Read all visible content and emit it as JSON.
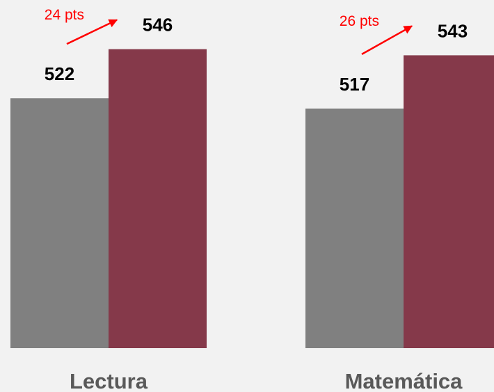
{
  "chart_data": {
    "type": "bar",
    "categories": [
      "Lectura",
      "Matemática"
    ],
    "series": [
      {
        "color": "#808080",
        "values": [
          522,
          517
        ]
      },
      {
        "color": "#85394a",
        "values": [
          546,
          543
        ]
      }
    ],
    "annotations": [
      {
        "text": "24 pts",
        "color": "#ff0000"
      },
      {
        "text": "26 pts",
        "color": "#ff0000"
      }
    ],
    "ylim": [
      400,
      570
    ]
  }
}
